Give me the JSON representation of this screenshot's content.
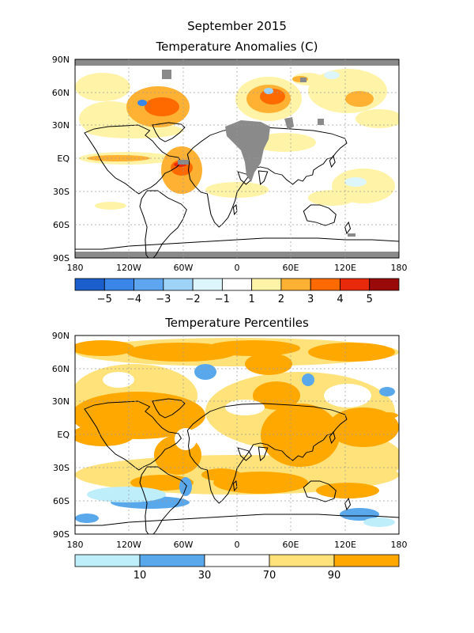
{
  "figure_title": "September 2015",
  "panels": [
    {
      "title": "Temperature Anomalies (C)",
      "lat_ticks": [
        "90N",
        "60N",
        "30N",
        "EQ",
        "30S",
        "60S",
        "90S"
      ],
      "lon_ticks": [
        "180",
        "120W",
        "60W",
        "0",
        "60E",
        "120E",
        "180"
      ],
      "colorbar": {
        "colors": [
          "#1a5fcc",
          "#3a86e8",
          "#5ea6ef",
          "#9fd2f7",
          "#dcf6fb",
          "#ffffff",
          "#fff3a8",
          "#ffb133",
          "#ff6a00",
          "#e8290c",
          "#9b0a0a"
        ],
        "labels": [
          "-5",
          "-4",
          "-3",
          "-2",
          "-1",
          "1",
          "2",
          "3",
          "4",
          "5"
        ]
      },
      "missing_color": "#8a8a8a"
    },
    {
      "title": "Temperature Percentiles",
      "lat_ticks": [
        "90N",
        "60N",
        "30N",
        "EQ",
        "30S",
        "60S",
        "90S"
      ],
      "lon_ticks": [
        "180",
        "120W",
        "60W",
        "0",
        "60E",
        "120E",
        "180"
      ],
      "colorbar": {
        "colors": [
          "#bfeefb",
          "#5aa8ec",
          "#ffffff",
          "#ffe27a",
          "#ffa800"
        ],
        "labels": [
          "10",
          "30",
          "70",
          "90"
        ]
      }
    }
  ]
}
